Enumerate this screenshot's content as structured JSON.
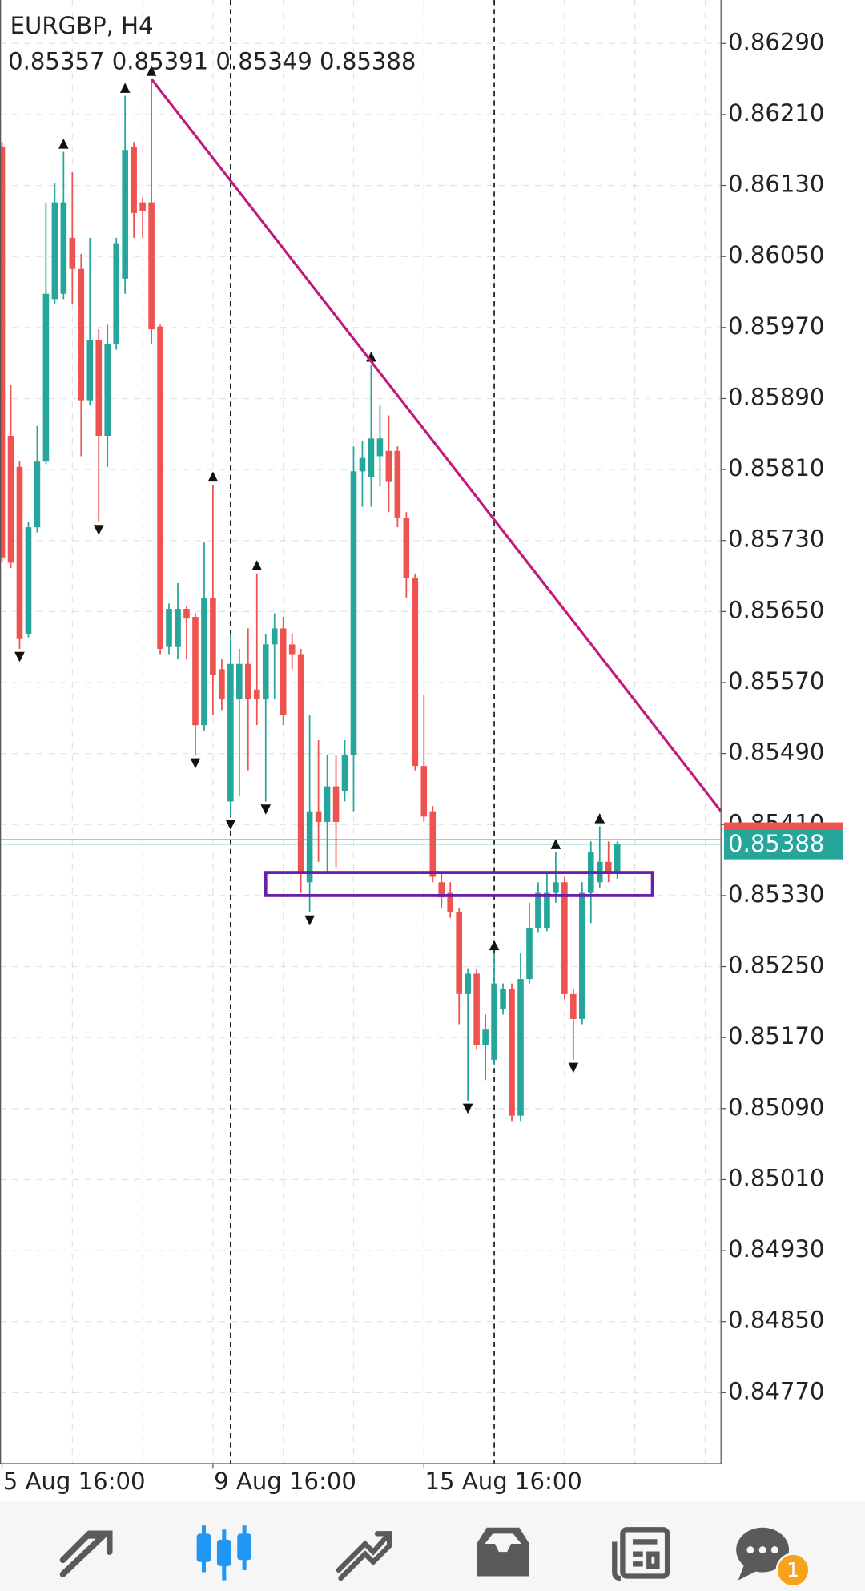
{
  "chart_data": {
    "type": "candlestick",
    "title": "EURGBP, H4",
    "categories": [
      "5 Aug 16:00",
      null,
      null,
      null,
      null,
      null,
      null,
      null,
      null,
      null,
      null,
      null,
      null,
      null,
      null,
      null,
      null,
      null,
      null,
      null,
      null,
      null,
      null,
      null,
      "9 Aug 16:00",
      null,
      null,
      null,
      null,
      null,
      null,
      null,
      null,
      null,
      null,
      null,
      null,
      null,
      null,
      null,
      null,
      null,
      null,
      null,
      null,
      null,
      null,
      null,
      "15 Aug 16:00",
      null,
      null,
      null,
      null,
      null,
      null,
      null,
      null,
      null,
      null,
      null,
      null,
      null,
      null,
      null,
      null,
      null,
      null,
      null,
      null,
      null,
      null
    ],
    "open": [
      0.86173,
      0.85848,
      0.85813,
      0.85625,
      0.85745,
      0.85819,
      0.86002,
      0.86008,
      0.86071,
      0.86036,
      0.85888,
      0.85956,
      0.85848,
      0.85951,
      0.86025,
      0.86173,
      0.86111,
      0.86111,
      0.85971,
      0.8561,
      0.8561,
      0.85653,
      0.85644,
      0.85522,
      0.85665,
      0.85585,
      0.85436,
      0.85551,
      0.85591,
      0.85562,
      0.85551,
      0.85613,
      0.85631,
      0.85613,
      0.85602,
      0.85345,
      0.85425,
      0.85413,
      0.85453,
      0.85448,
      0.85488,
      0.85808,
      0.85802,
      0.85825,
      0.85831,
      0.85831,
      0.85756,
      0.85688,
      0.85476,
      0.85425,
      0.85345,
      0.85333,
      0.85311,
      0.85219,
      0.85242,
      0.85162,
      0.85145,
      0.85202,
      0.85225,
      0.85082,
      0.85236,
      0.85293,
      0.85293,
      0.85333,
      0.85345,
      0.85219,
      0.85191,
      0.85333,
      0.85345,
      0.85368,
      0.85357
    ],
    "high": [
      0.86179,
      0.85905,
      0.85819,
      0.85751,
      0.85859,
      0.86111,
      0.86133,
      0.86168,
      0.86145,
      0.86053,
      0.86071,
      0.85968,
      0.85973,
      0.86071,
      0.86231,
      0.86179,
      0.86116,
      0.8625,
      0.85973,
      0.85659,
      0.85682,
      0.85656,
      0.85648,
      0.85728,
      0.85793,
      0.85596,
      0.85625,
      0.85608,
      0.85631,
      0.85693,
      0.85625,
      0.85648,
      0.85644,
      0.85625,
      0.85608,
      0.85533,
      0.85505,
      0.85488,
      0.85488,
      0.85505,
      0.85836,
      0.85842,
      0.85928,
      0.85882,
      0.85871,
      0.85836,
      0.85762,
      0.85693,
      0.85556,
      0.85431,
      0.85356,
      0.85345,
      0.85316,
      0.85248,
      0.85248,
      0.85196,
      0.85265,
      0.85231,
      0.85231,
      0.85265,
      0.85322,
      0.85345,
      0.85356,
      0.85379,
      0.85351,
      0.85225,
      0.85345,
      0.85391,
      0.85408,
      0.85391,
      0.85391
    ],
    "low": [
      0.85705,
      0.85699,
      0.85608,
      0.85621,
      0.85739,
      0.85816,
      0.85996,
      0.86002,
      0.85996,
      0.85825,
      0.85882,
      0.85751,
      0.85813,
      0.85945,
      0.86008,
      0.86071,
      0.86071,
      0.85951,
      0.85602,
      0.85602,
      0.85596,
      0.85596,
      0.85488,
      0.85516,
      0.85533,
      0.85539,
      0.85419,
      0.85442,
      0.85471,
      0.85522,
      0.85436,
      0.85551,
      0.85522,
      0.85585,
      0.85333,
      0.85311,
      0.85368,
      0.85356,
      0.85362,
      0.85436,
      0.85425,
      0.85768,
      0.85768,
      0.85791,
      0.85762,
      0.85745,
      0.85665,
      0.85471,
      0.85413,
      0.85345,
      0.85316,
      0.85305,
      0.85185,
      0.85099,
      0.85156,
      0.85122,
      0.85139,
      0.85196,
      0.85076,
      0.85076,
      0.85231,
      0.85288,
      0.8529,
      0.85322,
      0.85213,
      0.85145,
      0.85185,
      0.85299,
      0.85339,
      0.85345,
      0.85349
    ],
    "close": [
      0.85711,
      0.85705,
      0.85619,
      0.85745,
      0.85819,
      0.86008,
      0.86111,
      0.86111,
      0.86036,
      0.85888,
      0.85956,
      0.85848,
      0.85951,
      0.86065,
      0.8617,
      0.86099,
      0.86101,
      0.85968,
      0.85608,
      0.85653,
      0.85653,
      0.85642,
      0.85522,
      0.85665,
      0.85579,
      0.85551,
      0.85591,
      0.85591,
      0.85551,
      0.85551,
      0.85613,
      0.85631,
      0.85533,
      0.85602,
      0.85356,
      0.85425,
      0.85413,
      0.85453,
      0.85413,
      0.85488,
      0.85808,
      0.85823,
      0.85845,
      0.85845,
      0.85796,
      0.85756,
      0.85688,
      0.85476,
      0.85419,
      0.85351,
      0.85328,
      0.85311,
      0.85219,
      0.85242,
      0.85162,
      0.85179,
      0.85231,
      0.85225,
      0.85082,
      0.85236,
      0.85293,
      0.85333,
      0.85333,
      0.85345,
      0.85219,
      0.85191,
      0.85333,
      0.85379,
      0.85368,
      0.85356,
      0.85388
    ],
    "up_color": "#26a69a",
    "down_color": "#ef5350",
    "xlim": [
      -0.23,
      81.8
    ],
    "ylim": [
      0.8469,
      0.86339
    ],
    "yticks": [
      {
        "value": 0.8629,
        "label": "0.86290"
      },
      {
        "value": 0.8621,
        "label": "0.86210"
      },
      {
        "value": 0.8613,
        "label": "0.86130"
      },
      {
        "value": 0.8605,
        "label": "0.86050"
      },
      {
        "value": 0.8597,
        "label": "0.85970"
      },
      {
        "value": 0.8589,
        "label": "0.85890"
      },
      {
        "value": 0.8581,
        "label": "0.85810"
      },
      {
        "value": 0.8573,
        "label": "0.85730"
      },
      {
        "value": 0.8565,
        "label": "0.85650"
      },
      {
        "value": 0.8557,
        "label": "0.85570"
      },
      {
        "value": 0.8549,
        "label": "0.85490"
      },
      {
        "value": 0.8541,
        "label": "0.85410"
      },
      {
        "value": 0.8533,
        "label": "0.85330"
      },
      {
        "value": 0.8525,
        "label": "0.85250"
      },
      {
        "value": 0.8517,
        "label": "0.85170"
      },
      {
        "value": 0.8509,
        "label": "0.85090"
      },
      {
        "value": 0.8501,
        "label": "0.85010"
      },
      {
        "value": 0.8493,
        "label": "0.84930"
      },
      {
        "value": 0.8485,
        "label": "0.84850"
      },
      {
        "value": 0.8477,
        "label": "0.84770"
      }
    ],
    "x_grid_step": 8,
    "grid": true,
    "fractals": true,
    "trendline": {
      "x": [
        17,
        81.8
      ],
      "y": [
        0.8625,
        0.85425
      ],
      "color": "#c2187a"
    },
    "rectangle": {
      "x": [
        30,
        74
      ],
      "y": [
        0.8533,
        0.85356
      ],
      "color": "#6a1fa8"
    },
    "vlines": [
      26,
      56
    ],
    "bid": 0.85388,
    "ask": 0.85393,
    "bid_color": "#26a69a",
    "ask_color": "#ef5350"
  },
  "toolbar": {
    "badge": "1"
  }
}
